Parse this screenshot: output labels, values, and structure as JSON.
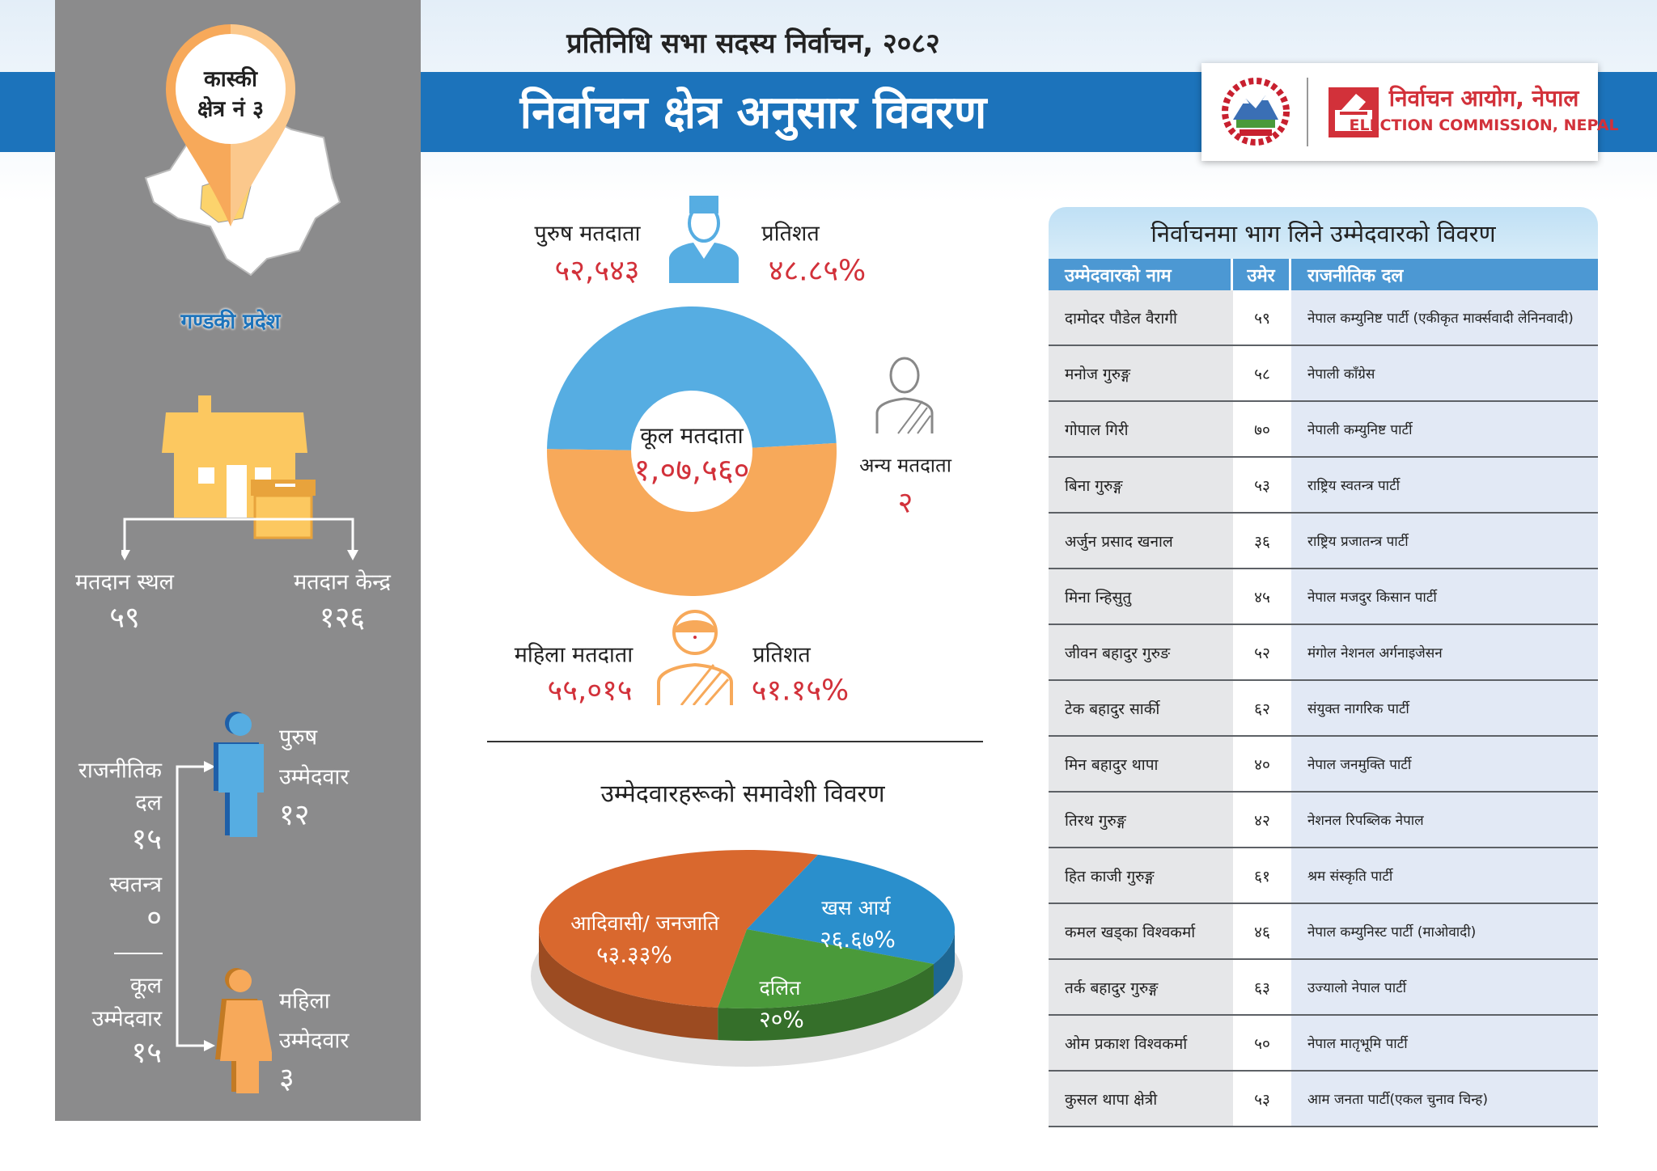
{
  "header": {
    "subtitle": "प्रतिनिधि सभा सदस्य निर्वाचन, २०८२",
    "title": "निर्वाचन क्षेत्र अनुसार विवरण",
    "org_name_np": "निर्वाचन आयोग, नेपाल",
    "org_name_en": "ELECTION COMMISSION, NEPAL"
  },
  "colors": {
    "header_blue": "#1c73bb",
    "panel_gray": "#8b8b8c",
    "male_blue": "#56ade2",
    "female_orange": "#f7a95a",
    "value_red": "#d2313a"
  },
  "constituency": {
    "district": "कास्की",
    "number": "क्षेत्र नं ३",
    "province": "गण्डकी प्रदेश"
  },
  "polling": {
    "station_label": "मतदान स्थल",
    "station_value": "५९",
    "center_label": "मतदान केन्द्र",
    "center_value": "१२६"
  },
  "candidates_summary": {
    "party_label_1": "राजनीतिक",
    "party_label_2": "दल",
    "party_value": "१५",
    "independent_label": "स्वतन्त्र",
    "independent_value": "०",
    "total_label_1": "कूल",
    "total_label_2": "उम्मेदवार",
    "total_value": "१५",
    "male_label_1": "पुरुष",
    "male_label_2": "उम्मेदवार",
    "male_value": "१२",
    "female_label_1": "महिला",
    "female_label_2": "उम्मेदवार",
    "female_value": "३"
  },
  "voters": {
    "male_label": "पुरुष मतदाता",
    "male_value": "५२,५४३",
    "male_pct_label": "प्रतिशत",
    "male_pct": "४८.८५%",
    "total_label": "कूल मतदाता",
    "total_value": "१,०७,५६०",
    "other_label": "अन्य मतदाता",
    "other_value": "२",
    "female_label": "महिला मतदाता",
    "female_value": "५५,०१५",
    "female_pct_label": "प्रतिशत",
    "female_pct": "५१.१५%"
  },
  "chart_data": [
    {
      "type": "pie",
      "variant": "donut",
      "series": [
        {
          "name": "पुरुष मतदाता",
          "value": 48.85,
          "color": "#56ade2"
        },
        {
          "name": "महिला मतदाता",
          "value": 51.15,
          "color": "#f7a95a"
        }
      ]
    },
    {
      "type": "pie",
      "variant": "3d",
      "title": "उम्मेदवारहरूको समावेशी विवरण",
      "slices": [
        {
          "label": "आदिवासी/ जनजाति",
          "value": 53.33,
          "value_label": "५३.३३%",
          "color": "#d9682e"
        },
        {
          "label": "खस आर्य",
          "value": 26.67,
          "value_label": "२६.६७%",
          "color": "#2a8fcc"
        },
        {
          "label": "दलित",
          "value": 20,
          "value_label": "२०%",
          "color": "#4a9a3a"
        }
      ]
    }
  ],
  "table": {
    "title": "निर्वाचनमा भाग लिने उम्मेदवारको विवरण",
    "headers": [
      "उम्मेदवारको नाम",
      "उमेर",
      "राजनीतिक दल"
    ],
    "rows": [
      [
        "दामोदर पौडेल वैरागी",
        "५९",
        "नेपाल कम्युनिष्ट पार्टी (एकीकृत मार्क्सवादी लेनिनवादी)"
      ],
      [
        "मनोज गुरुङ्ग",
        "५८",
        "नेपाली काँग्रेस"
      ],
      [
        "गोपाल गिरी",
        "७०",
        "नेपाली कम्युनिष्ट पार्टी"
      ],
      [
        "बिना गुरुङ्ग",
        "५३",
        "राष्ट्रिय स्वतन्त्र पार्टी"
      ],
      [
        "अर्जुन प्रसाद खनाल",
        "३६",
        "राष्ट्रिय प्रजातन्त्र पार्टी"
      ],
      [
        "मिना न्हिसुतु",
        "४५",
        "नेपाल मजदुर किसान पार्टी"
      ],
      [
        "जीवन बहादुर गुरुङ",
        "५२",
        "मंगोल नेशनल अर्गनाइजेसन"
      ],
      [
        "टेक बहादुर सार्की",
        "६२",
        "संयुक्त नागरिक पार्टी"
      ],
      [
        "मिन बहादुर थापा",
        "४०",
        "नेपाल जनमुक्ति पार्टी"
      ],
      [
        "तिरथ गुरुङ्ग",
        "४२",
        "नेशनल रिपब्लिक नेपाल"
      ],
      [
        "हित काजी गुरुङ्ग",
        "६१",
        "श्रम संस्कृति पार्टी"
      ],
      [
        "कमल खड्का विश्वकर्मा",
        "४६",
        "नेपाल कम्युनिस्ट पार्टी (माओवादी)"
      ],
      [
        "तर्क बहादुर गुरुङ्ग",
        "६३",
        "उज्यालो नेपाल पार्टी"
      ],
      [
        "ओम प्रकाश विश्वकर्मा",
        "५०",
        "नेपाल मातृभूमि पार्टी"
      ],
      [
        "कुसल थापा क्षेत्री",
        "५३",
        "आम जनता पार्टी(एकल चुनाव चिन्ह)"
      ]
    ]
  }
}
